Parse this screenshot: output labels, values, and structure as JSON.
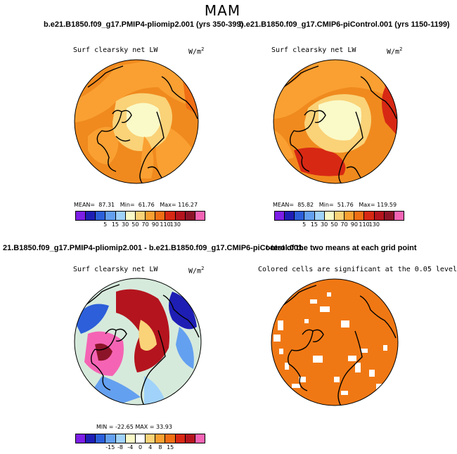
{
  "page": {
    "title": "MAM"
  },
  "panels": [
    {
      "case_title": "b.e21.B1850.f09_g17.PMIP4-pliomip2.001 (yrs 350-399)",
      "variable": "Surf clearsky net LW",
      "units": "W/m",
      "units_sup": "2",
      "stats": {
        "mean_label": "MEAN=",
        "mean": "87.31",
        "min_label": "Min=",
        "min": "61.76",
        "max_label": "Max=",
        "max": "116.27"
      },
      "colorbar_labels": [
        "5",
        "15",
        "30",
        "50",
        "70",
        "90",
        "110",
        "130"
      ]
    },
    {
      "case_title": "b.e21.B1850.f09_g17.CMIP6-piControl.001 (yrs 1150-1199)",
      "variable": "Surf clearsky net LW",
      "units": "W/m",
      "units_sup": "2",
      "stats": {
        "mean_label": "MEAN=",
        "mean": "85.82",
        "min_label": "Min=",
        "min": "51.76",
        "max_label": "Max=",
        "max": "119.59"
      },
      "colorbar_labels": [
        "5",
        "15",
        "30",
        "50",
        "70",
        "90",
        "110",
        "130"
      ]
    },
    {
      "case_title": "21.B1850.f09_g17.PMIP4-pliomip2.001 - b.e21.B1850.f09_g17.CMIP6-piControl.001",
      "variable": "Surf clearsky net LW",
      "units": "W/m",
      "units_sup": "2",
      "stats_text": "MIN = -22.65  MAX =  33.93",
      "colorbar_labels": [
        "-15",
        "-8",
        "-4",
        "0",
        "4",
        "8",
        "15"
      ]
    },
    {
      "case_title": "t-test of the two means at each grid point",
      "variable": "Colored cells are significant at the 0.05 level"
    }
  ],
  "colors": {
    "abs_scale": [
      "#7c1ee6",
      "#1e1eb4",
      "#2c5fd9",
      "#64a0f0",
      "#a0d2fa",
      "#fafac8",
      "#fad278",
      "#faa032",
      "#f06e14",
      "#d72814",
      "#b4141e",
      "#8c1428",
      "#f564b4"
    ],
    "diff_scale": [
      "#7c1ee6",
      "#1e1eb4",
      "#2c5fd9",
      "#64a0f0",
      "#a0d2fa",
      "#fafac8",
      "#ffffff",
      "#fad278",
      "#faa032",
      "#f06e14",
      "#d72814",
      "#b4141e",
      "#f564b4"
    ],
    "significant": "#f07814"
  }
}
